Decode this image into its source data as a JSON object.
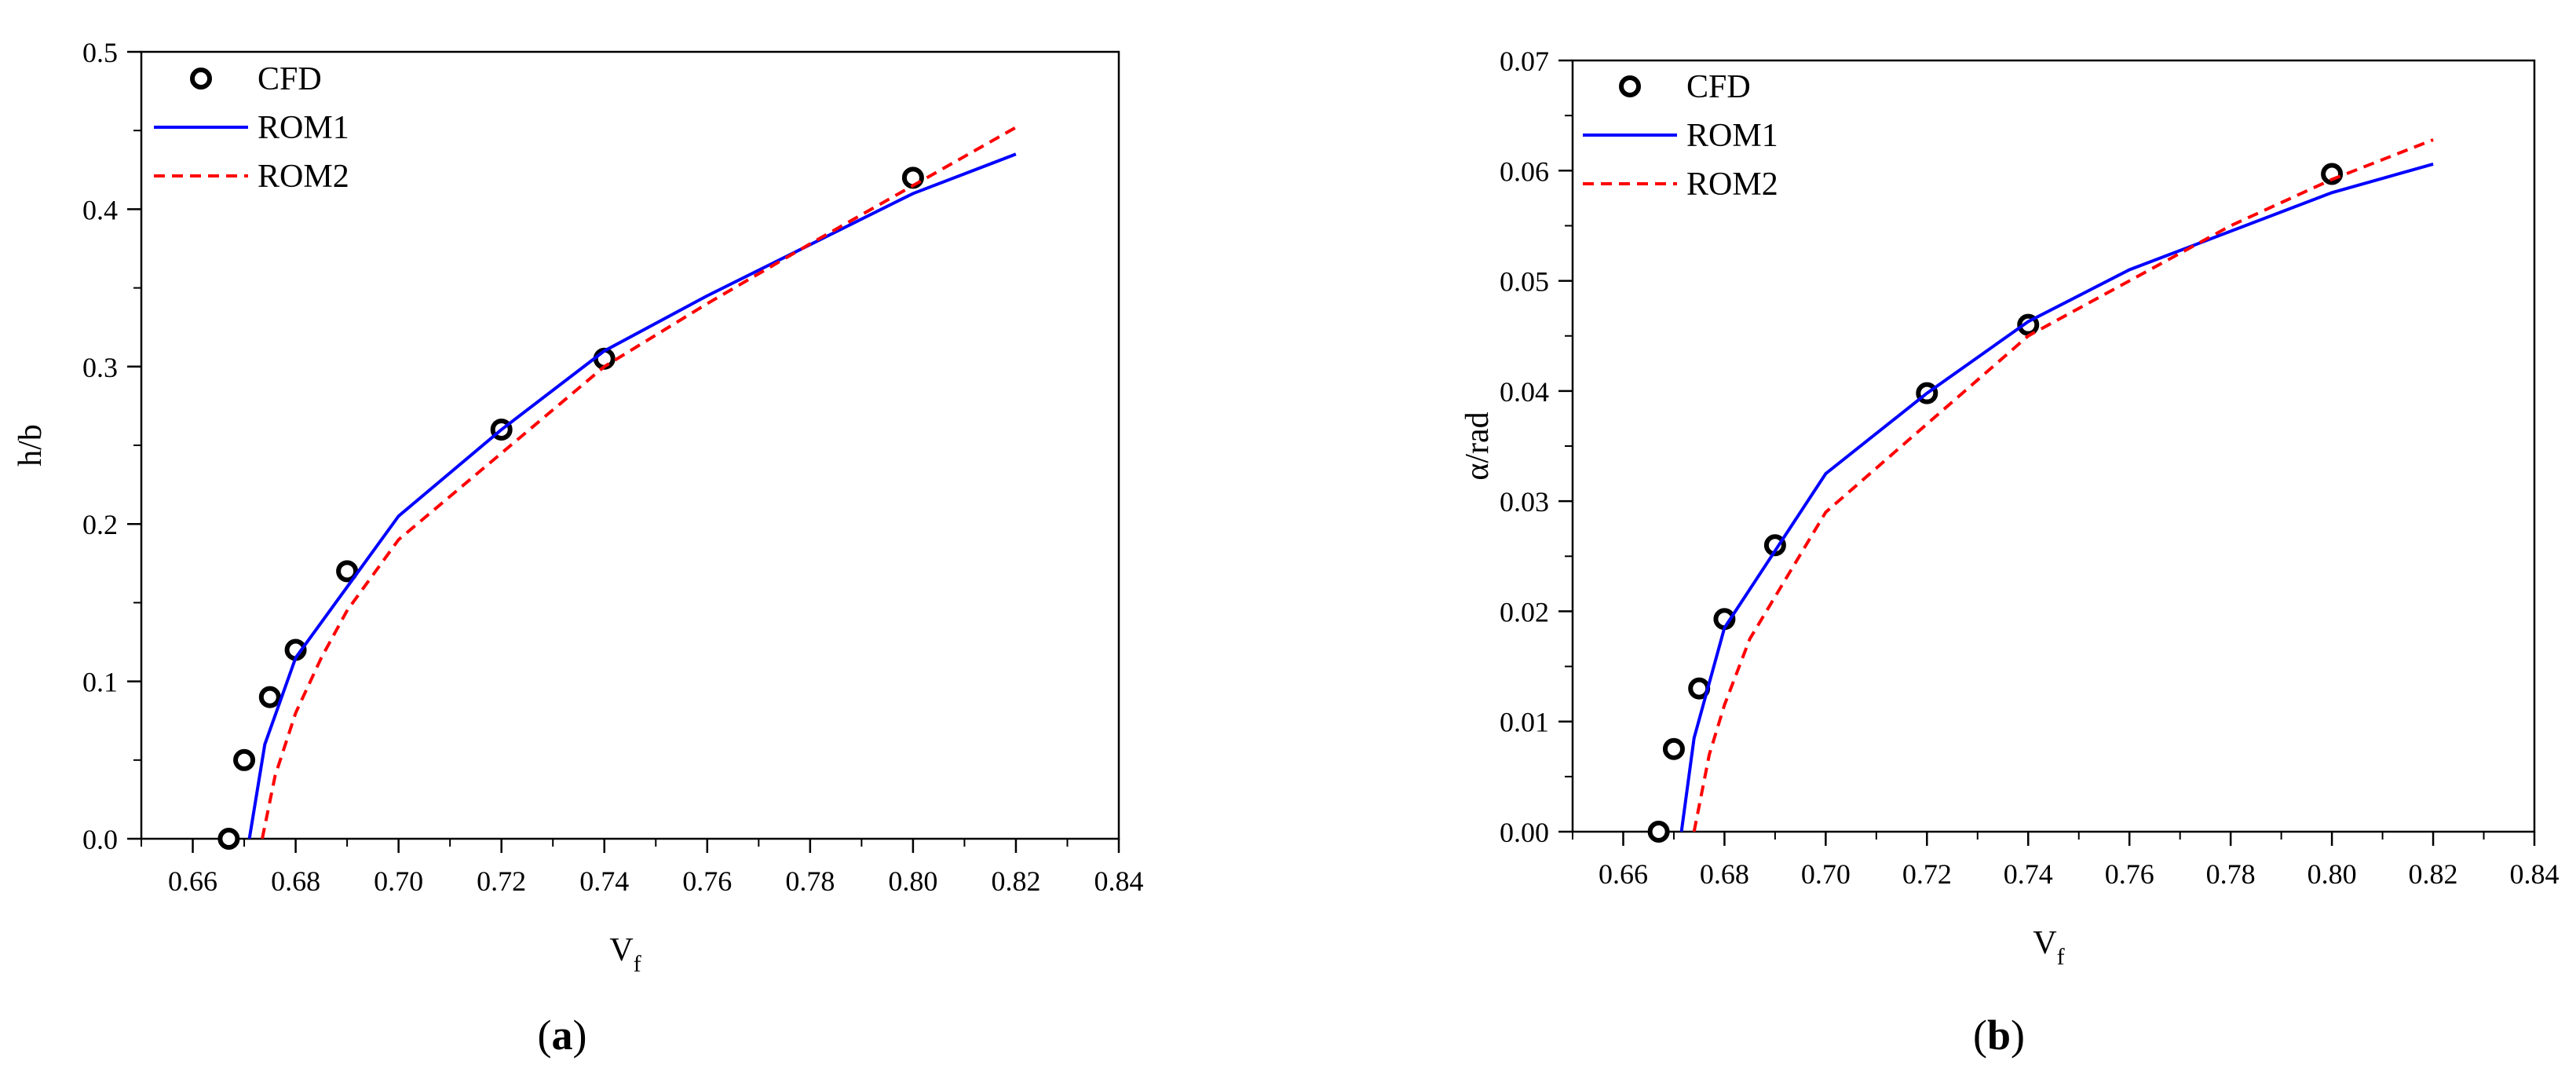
{
  "chart_data": [
    {
      "type": "line",
      "panel_label": "a",
      "xlabel": "V",
      "xlabel_sub": "f",
      "ylabel": "h/b",
      "xlim": [
        0.65,
        0.84
      ],
      "ylim": [
        0.0,
        0.5
      ],
      "xticks": [
        "0.66",
        "0.68",
        "0.70",
        "0.72",
        "0.74",
        "0.76",
        "0.78",
        "0.80",
        "0.82",
        "0.84"
      ],
      "yticks": [
        "0.0",
        "0.1",
        "0.2",
        "0.3",
        "0.4",
        "0.5"
      ],
      "legend": {
        "position": "top-left",
        "entries": [
          "CFD",
          "ROM1",
          "ROM2"
        ]
      },
      "series": [
        {
          "name": "CFD",
          "style": "markers",
          "color": "#000000",
          "x": [
            0.667,
            0.67,
            0.675,
            0.68,
            0.69,
            0.72,
            0.74,
            0.8
          ],
          "y": [
            0.0,
            0.05,
            0.09,
            0.12,
            0.17,
            0.26,
            0.305,
            0.42
          ]
        },
        {
          "name": "ROM1",
          "style": "solid",
          "color": "#0000ff",
          "x": [
            0.671,
            0.674,
            0.68,
            0.69,
            0.7,
            0.72,
            0.74,
            0.76,
            0.8,
            0.82
          ],
          "y": [
            0.0,
            0.06,
            0.115,
            0.16,
            0.205,
            0.26,
            0.31,
            0.345,
            0.41,
            0.435
          ]
        },
        {
          "name": "ROM2",
          "style": "dashed",
          "color": "#ff0000",
          "x": [
            0.6735,
            0.676,
            0.68,
            0.685,
            0.69,
            0.7,
            0.72,
            0.74,
            0.76,
            0.78,
            0.8,
            0.82
          ],
          "y": [
            0.0,
            0.04,
            0.08,
            0.115,
            0.145,
            0.19,
            0.245,
            0.3,
            0.34,
            0.378,
            0.415,
            0.452
          ]
        }
      ]
    },
    {
      "type": "line",
      "panel_label": "b",
      "xlabel": "V",
      "xlabel_sub": "f",
      "ylabel": "α/rad",
      "xlim": [
        0.65,
        0.84
      ],
      "ylim": [
        0.0,
        0.07
      ],
      "xticks": [
        "0.66",
        "0.68",
        "0.70",
        "0.72",
        "0.74",
        "0.76",
        "0.78",
        "0.80",
        "0.82",
        "0.84"
      ],
      "yticks": [
        "0.00",
        "0.01",
        "0.02",
        "0.03",
        "0.04",
        "0.05",
        "0.06",
        "0.07"
      ],
      "legend": {
        "position": "top-left",
        "entries": [
          "CFD",
          "ROM1",
          "ROM2"
        ]
      },
      "series": [
        {
          "name": "CFD",
          "style": "markers",
          "color": "#000000",
          "x": [
            0.667,
            0.67,
            0.675,
            0.68,
            0.69,
            0.72,
            0.74,
            0.8
          ],
          "y": [
            0.0,
            0.0075,
            0.013,
            0.0193,
            0.026,
            0.0398,
            0.046,
            0.0597
          ]
        },
        {
          "name": "ROM1",
          "style": "solid",
          "color": "#0000ff",
          "x": [
            0.6715,
            0.674,
            0.68,
            0.69,
            0.7,
            0.72,
            0.74,
            0.76,
            0.8,
            0.82
          ],
          "y": [
            0.0,
            0.0085,
            0.0185,
            0.0255,
            0.0325,
            0.0398,
            0.0463,
            0.051,
            0.058,
            0.0606
          ]
        },
        {
          "name": "ROM2",
          "style": "dashed",
          "color": "#ff0000",
          "x": [
            0.674,
            0.677,
            0.68,
            0.685,
            0.7,
            0.72,
            0.74,
            0.76,
            0.78,
            0.8,
            0.82
          ],
          "y": [
            0.0,
            0.007,
            0.0115,
            0.0175,
            0.029,
            0.037,
            0.045,
            0.05,
            0.055,
            0.0592,
            0.0628
          ]
        }
      ]
    }
  ]
}
